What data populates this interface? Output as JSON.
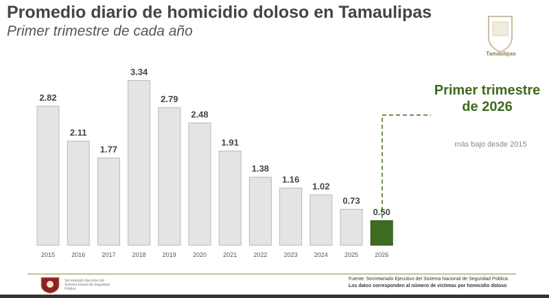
{
  "header": {
    "title": "Promedio diario de homicidio doloso en Tamaulipas",
    "subtitle": "Primer trimestre de cada año",
    "logo_text": "Tamaulipas"
  },
  "annotation": {
    "title": "Primer trimestre de 2026",
    "subtitle": "más bajo desde 2015"
  },
  "footer": {
    "org": "Secretariado Ejecutivo del Sistema Estatal de Seguridad Pública",
    "source": "Fuente: Secretariado Ejecutivo del Sistema Nacional de Seguridad Pública.",
    "note": "Los datos corresponden al número de víctimas por homicidio doloso"
  },
  "chart_data": {
    "type": "bar",
    "categories": [
      "2015",
      "2016",
      "2017",
      "2018",
      "2019",
      "2020",
      "2021",
      "2022",
      "2023",
      "2024",
      "2025",
      "2026"
    ],
    "values": [
      2.82,
      2.11,
      1.77,
      3.34,
      2.79,
      2.48,
      1.91,
      1.38,
      1.16,
      1.02,
      0.73,
      0.5
    ],
    "labels": [
      "2.82",
      "2.11",
      "1.77",
      "3.34",
      "2.79",
      "2.48",
      "1.91",
      "1.38",
      "1.16",
      "1.02",
      "0.73",
      "0.50"
    ],
    "colors": {
      "default": "#e4e4e4",
      "highlight": "#3d6b1f"
    },
    "highlight": "2026",
    "grid": false
  }
}
